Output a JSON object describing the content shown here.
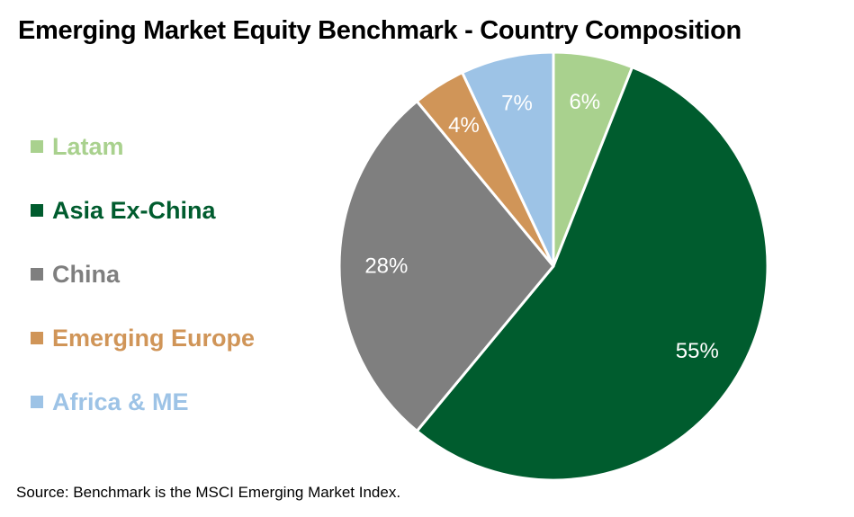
{
  "chart_data": {
    "type": "pie",
    "title": "Emerging Market Equity Benchmark - Country Composition",
    "slices": [
      {
        "name": "Latam",
        "value": 6,
        "label": "6%",
        "color": "#a9d18e"
      },
      {
        "name": "Asia Ex-China",
        "value": 55,
        "label": "55%",
        "color": "#005c2e"
      },
      {
        "name": "China",
        "value": 28,
        "label": "28%",
        "color": "#7f7f7f"
      },
      {
        "name": "Emerging Europe",
        "value": 4,
        "label": "4%",
        "color": "#d09558"
      },
      {
        "name": "Africa & ME",
        "value": 7,
        "label": "7%",
        "color": "#9dc3e6"
      }
    ],
    "legend_position": "left",
    "label_color": "#ffffff"
  },
  "source": "Source: Benchmark is the MSCI Emerging Market Index."
}
